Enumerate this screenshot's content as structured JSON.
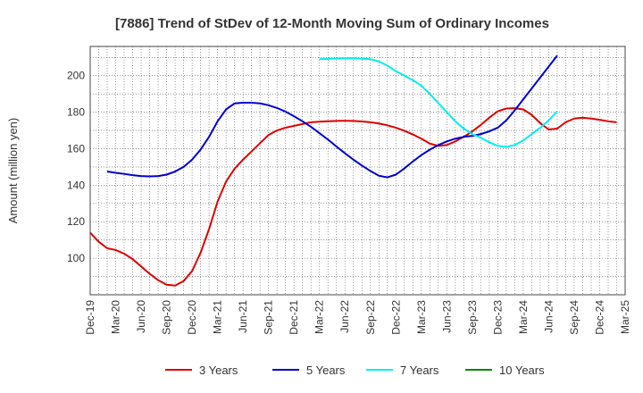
{
  "chart_data": {
    "type": "line",
    "title": "[7886]  Trend of StDev of 12-Month Moving Sum of Ordinary Incomes",
    "xlabel": "",
    "ylabel": "Amount (million yen)",
    "ylim": [
      80,
      216
    ],
    "yticks": [
      100,
      120,
      140,
      160,
      180,
      200
    ],
    "grid": true,
    "legend_position": "bottom",
    "x_tick_labels": [
      "Dec-19",
      "Mar-20",
      "Jun-20",
      "Sep-20",
      "Dec-20",
      "Mar-21",
      "Jun-21",
      "Sep-21",
      "Dec-21",
      "Mar-22",
      "Jun-22",
      "Sep-22",
      "Dec-22",
      "Mar-23",
      "Jun-23",
      "Sep-23",
      "Dec-23",
      "Mar-24",
      "Jun-24",
      "Sep-24",
      "Dec-24",
      "Mar-25"
    ],
    "x_months": [
      "Dec-19",
      "Jan-20",
      "Feb-20",
      "Mar-20",
      "Apr-20",
      "May-20",
      "Jun-20",
      "Jul-20",
      "Aug-20",
      "Sep-20",
      "Oct-20",
      "Nov-20",
      "Dec-20",
      "Jan-21",
      "Feb-21",
      "Mar-21",
      "Apr-21",
      "May-21",
      "Jun-21",
      "Jul-21",
      "Aug-21",
      "Sep-21",
      "Oct-21",
      "Nov-21",
      "Dec-21",
      "Jan-22",
      "Feb-22",
      "Mar-22",
      "Apr-22",
      "May-22",
      "Jun-22",
      "Jul-22",
      "Aug-22",
      "Sep-22",
      "Oct-22",
      "Nov-22",
      "Dec-22",
      "Jan-23",
      "Feb-23",
      "Mar-23",
      "Apr-23",
      "May-23",
      "Jun-23",
      "Jul-23",
      "Aug-23",
      "Sep-23",
      "Oct-23",
      "Nov-23",
      "Dec-23",
      "Jan-24",
      "Feb-24",
      "Mar-24",
      "Apr-24",
      "May-24",
      "Jun-24",
      "Jul-24",
      "Aug-24",
      "Sep-24",
      "Oct-24",
      "Nov-24",
      "Dec-24",
      "Jan-25",
      "Feb-25",
      "Mar-25"
    ],
    "series": [
      {
        "name": "3 Years",
        "color": "#dd0000",
        "start_index": 0,
        "values": [
          114,
          109,
          105.5,
          104.5,
          102.5,
          99.5,
          95.5,
          91.5,
          88,
          85.5,
          85,
          87.5,
          93,
          103,
          116,
          131,
          142,
          149,
          154,
          158.5,
          163,
          167.5,
          170,
          171.5,
          172.5,
          173.5,
          174.5,
          174.8,
          175,
          175.2,
          175.3,
          175.2,
          174.9,
          174.5,
          173.8,
          172.8,
          171.5,
          169.8,
          167.8,
          165.5,
          162.8,
          161.5,
          162,
          164,
          166.5,
          169.5,
          173,
          177,
          180.5,
          182,
          182.2,
          181.5,
          178.5,
          174,
          170.5,
          171,
          174.5,
          176.5,
          177,
          176.5,
          175.8,
          175,
          174.5
        ]
      },
      {
        "name": "5 Years",
        "color": "#0000cc",
        "start_index": 2,
        "values": [
          147.5,
          146.8,
          146.2,
          145.5,
          145,
          144.8,
          145,
          145.8,
          147.5,
          150,
          154,
          159.5,
          166.5,
          175,
          181.5,
          184.8,
          185.2,
          185.2,
          184.8,
          183.8,
          182.3,
          180.3,
          177.8,
          175,
          172,
          168.5,
          165,
          161.2,
          157.5,
          154,
          150.8,
          147.8,
          145.2,
          144.3,
          145.8,
          149.2,
          153,
          156.5,
          159.5,
          162,
          164,
          165.5,
          166.5,
          167,
          168,
          169.5,
          171.5,
          175.5,
          181,
          187,
          193,
          199,
          205,
          211
        ]
      },
      {
        "name": "7 Years",
        "color": "#00eeee",
        "start_index": 27,
        "values": [
          209,
          209.2,
          209.4,
          209.5,
          209.5,
          209.3,
          209,
          207.8,
          205.5,
          202.5,
          200,
          197.5,
          194.5,
          190,
          185,
          180,
          175,
          171,
          168,
          166,
          163.5,
          161.5,
          161,
          162,
          164.5,
          168,
          171.5,
          175.5,
          180.5
        ]
      },
      {
        "name": "10 Years",
        "color": "#008800",
        "start_index": 0,
        "values": []
      }
    ]
  }
}
